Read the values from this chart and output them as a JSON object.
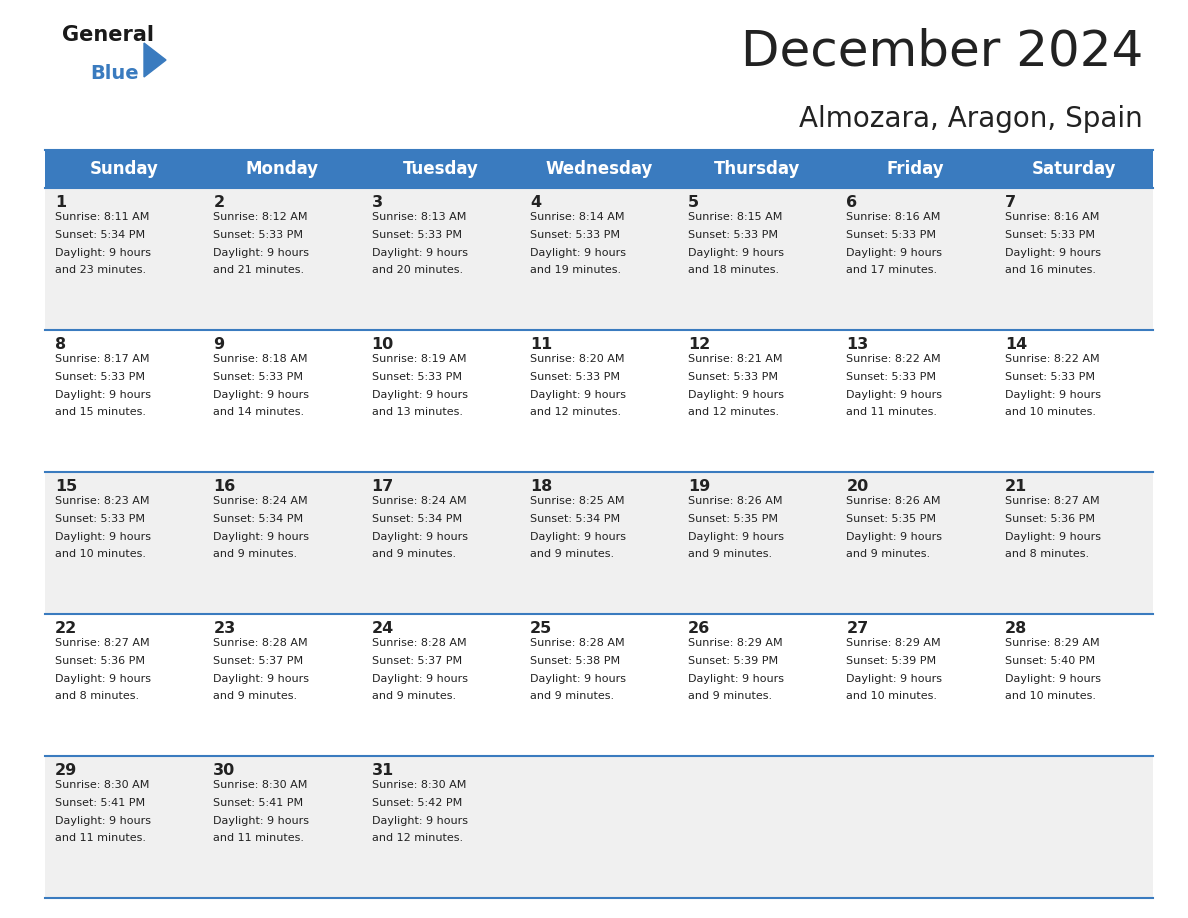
{
  "title": "December 2024",
  "subtitle": "Almozara, Aragon, Spain",
  "header_color": "#3a7bbf",
  "header_text_color": "#ffffff",
  "row_colors": [
    "#f0f0f0",
    "#ffffff"
  ],
  "border_color": "#3a7bbf",
  "text_color": "#222222",
  "days_of_week": [
    "Sunday",
    "Monday",
    "Tuesday",
    "Wednesday",
    "Thursday",
    "Friday",
    "Saturday"
  ],
  "calendar": [
    [
      {
        "day": "1",
        "sunrise": "8:11 AM",
        "sunset": "5:34 PM",
        "daylight_h": "9 hours",
        "daylight_m": "and 23 minutes."
      },
      {
        "day": "2",
        "sunrise": "8:12 AM",
        "sunset": "5:33 PM",
        "daylight_h": "9 hours",
        "daylight_m": "and 21 minutes."
      },
      {
        "day": "3",
        "sunrise": "8:13 AM",
        "sunset": "5:33 PM",
        "daylight_h": "9 hours",
        "daylight_m": "and 20 minutes."
      },
      {
        "day": "4",
        "sunrise": "8:14 AM",
        "sunset": "5:33 PM",
        "daylight_h": "9 hours",
        "daylight_m": "and 19 minutes."
      },
      {
        "day": "5",
        "sunrise": "8:15 AM",
        "sunset": "5:33 PM",
        "daylight_h": "9 hours",
        "daylight_m": "and 18 minutes."
      },
      {
        "day": "6",
        "sunrise": "8:16 AM",
        "sunset": "5:33 PM",
        "daylight_h": "9 hours",
        "daylight_m": "and 17 minutes."
      },
      {
        "day": "7",
        "sunrise": "8:16 AM",
        "sunset": "5:33 PM",
        "daylight_h": "9 hours",
        "daylight_m": "and 16 minutes."
      }
    ],
    [
      {
        "day": "8",
        "sunrise": "8:17 AM",
        "sunset": "5:33 PM",
        "daylight_h": "9 hours",
        "daylight_m": "and 15 minutes."
      },
      {
        "day": "9",
        "sunrise": "8:18 AM",
        "sunset": "5:33 PM",
        "daylight_h": "9 hours",
        "daylight_m": "and 14 minutes."
      },
      {
        "day": "10",
        "sunrise": "8:19 AM",
        "sunset": "5:33 PM",
        "daylight_h": "9 hours",
        "daylight_m": "and 13 minutes."
      },
      {
        "day": "11",
        "sunrise": "8:20 AM",
        "sunset": "5:33 PM",
        "daylight_h": "9 hours",
        "daylight_m": "and 12 minutes."
      },
      {
        "day": "12",
        "sunrise": "8:21 AM",
        "sunset": "5:33 PM",
        "daylight_h": "9 hours",
        "daylight_m": "and 12 minutes."
      },
      {
        "day": "13",
        "sunrise": "8:22 AM",
        "sunset": "5:33 PM",
        "daylight_h": "9 hours",
        "daylight_m": "and 11 minutes."
      },
      {
        "day": "14",
        "sunrise": "8:22 AM",
        "sunset": "5:33 PM",
        "daylight_h": "9 hours",
        "daylight_m": "and 10 minutes."
      }
    ],
    [
      {
        "day": "15",
        "sunrise": "8:23 AM",
        "sunset": "5:33 PM",
        "daylight_h": "9 hours",
        "daylight_m": "and 10 minutes."
      },
      {
        "day": "16",
        "sunrise": "8:24 AM",
        "sunset": "5:34 PM",
        "daylight_h": "9 hours",
        "daylight_m": "and 9 minutes."
      },
      {
        "day": "17",
        "sunrise": "8:24 AM",
        "sunset": "5:34 PM",
        "daylight_h": "9 hours",
        "daylight_m": "and 9 minutes."
      },
      {
        "day": "18",
        "sunrise": "8:25 AM",
        "sunset": "5:34 PM",
        "daylight_h": "9 hours",
        "daylight_m": "and 9 minutes."
      },
      {
        "day": "19",
        "sunrise": "8:26 AM",
        "sunset": "5:35 PM",
        "daylight_h": "9 hours",
        "daylight_m": "and 9 minutes."
      },
      {
        "day": "20",
        "sunrise": "8:26 AM",
        "sunset": "5:35 PM",
        "daylight_h": "9 hours",
        "daylight_m": "and 9 minutes."
      },
      {
        "day": "21",
        "sunrise": "8:27 AM",
        "sunset": "5:36 PM",
        "daylight_h": "9 hours",
        "daylight_m": "and 8 minutes."
      }
    ],
    [
      {
        "day": "22",
        "sunrise": "8:27 AM",
        "sunset": "5:36 PM",
        "daylight_h": "9 hours",
        "daylight_m": "and 8 minutes."
      },
      {
        "day": "23",
        "sunrise": "8:28 AM",
        "sunset": "5:37 PM",
        "daylight_h": "9 hours",
        "daylight_m": "and 9 minutes."
      },
      {
        "day": "24",
        "sunrise": "8:28 AM",
        "sunset": "5:37 PM",
        "daylight_h": "9 hours",
        "daylight_m": "and 9 minutes."
      },
      {
        "day": "25",
        "sunrise": "8:28 AM",
        "sunset": "5:38 PM",
        "daylight_h": "9 hours",
        "daylight_m": "and 9 minutes."
      },
      {
        "day": "26",
        "sunrise": "8:29 AM",
        "sunset": "5:39 PM",
        "daylight_h": "9 hours",
        "daylight_m": "and 9 minutes."
      },
      {
        "day": "27",
        "sunrise": "8:29 AM",
        "sunset": "5:39 PM",
        "daylight_h": "9 hours",
        "daylight_m": "and 10 minutes."
      },
      {
        "day": "28",
        "sunrise": "8:29 AM",
        "sunset": "5:40 PM",
        "daylight_h": "9 hours",
        "daylight_m": "and 10 minutes."
      }
    ],
    [
      {
        "day": "29",
        "sunrise": "8:30 AM",
        "sunset": "5:41 PM",
        "daylight_h": "9 hours",
        "daylight_m": "and 11 minutes."
      },
      {
        "day": "30",
        "sunrise": "8:30 AM",
        "sunset": "5:41 PM",
        "daylight_h": "9 hours",
        "daylight_m": "and 11 minutes."
      },
      {
        "day": "31",
        "sunrise": "8:30 AM",
        "sunset": "5:42 PM",
        "daylight_h": "9 hours",
        "daylight_m": "and 12 minutes."
      },
      null,
      null,
      null,
      null
    ]
  ],
  "fig_width": 11.88,
  "fig_height": 9.18,
  "dpi": 100
}
